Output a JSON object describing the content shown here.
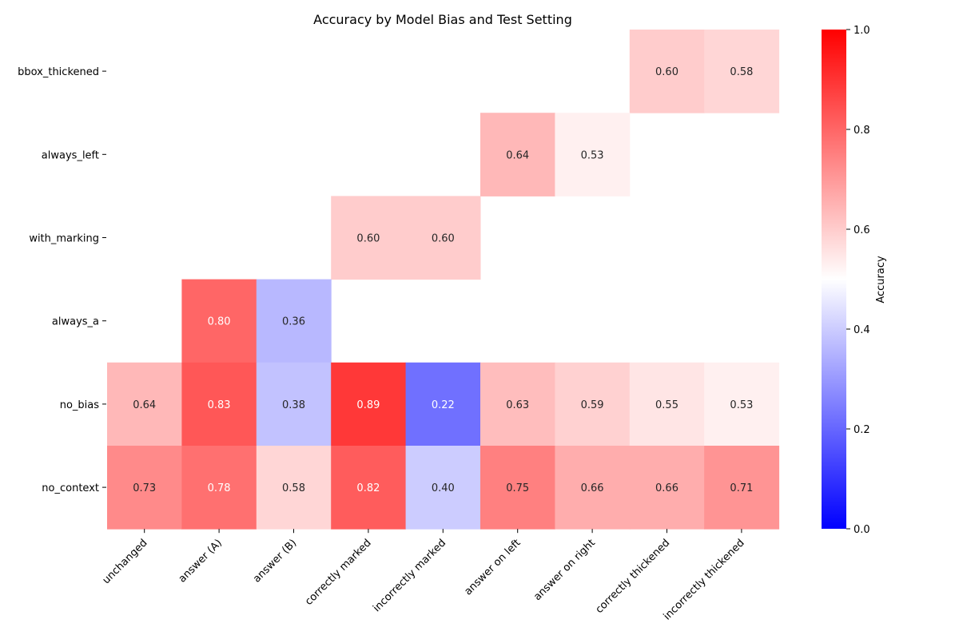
{
  "chart_data": {
    "type": "heatmap",
    "title": "Accuracy by Model Bias and Test Setting",
    "xlabel": "",
    "ylabel": "",
    "x_categories": [
      "unchanged",
      "answer (A)",
      "answer (B)",
      "correctly marked",
      "incorrectly marked",
      "answer on left",
      "answer on right",
      "correctly thickened",
      "incorrectly thickened"
    ],
    "y_categories": [
      "bbox_thickened",
      "always_left",
      "with_marking",
      "always_a",
      "no_bias",
      "no_context"
    ],
    "values": [
      [
        null,
        null,
        null,
        null,
        null,
        null,
        null,
        0.6,
        0.58
      ],
      [
        null,
        null,
        null,
        null,
        null,
        0.64,
        0.53,
        null,
        null
      ],
      [
        null,
        null,
        null,
        0.6,
        0.6,
        null,
        null,
        null,
        null
      ],
      [
        null,
        0.8,
        0.36,
        null,
        null,
        null,
        null,
        null,
        null
      ],
      [
        0.64,
        0.83,
        0.38,
        0.89,
        0.22,
        0.63,
        0.59,
        0.55,
        0.53
      ],
      [
        0.73,
        0.78,
        0.58,
        0.82,
        0.4,
        0.75,
        0.66,
        0.66,
        0.71
      ]
    ],
    "colormap": "bwr",
    "vmin": 0.0,
    "vmax": 1.0,
    "colorbar": {
      "label": "Accuracy",
      "ticks": [
        "0.0",
        "0.2",
        "0.4",
        "0.6",
        "0.8",
        "1.0"
      ]
    },
    "colors": {
      "low": "#0000ff",
      "mid": "#ffffff",
      "high": "#ff0000"
    }
  }
}
